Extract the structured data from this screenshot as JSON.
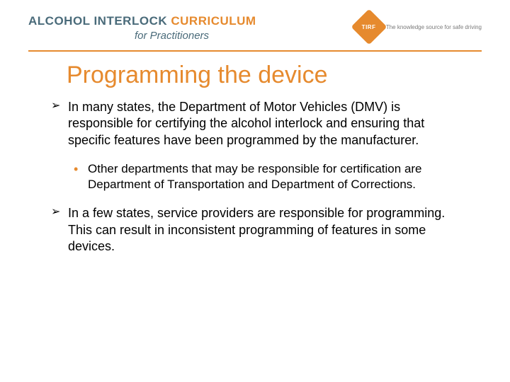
{
  "header": {
    "brand_part1": "ALCOHOL INTERLOCK ",
    "brand_part2": "CURRICULUM",
    "brand_subtitle": "for Practitioners",
    "logo_text": "TIRF",
    "tagline": "The knowledge source for safe driving"
  },
  "colors": {
    "accent": "#e68a2e",
    "brand_text": "#4a6b7a",
    "body_text": "#000000",
    "background": "#ffffff"
  },
  "slide": {
    "title": "Programming the device",
    "bullets": [
      {
        "level": 1,
        "text": "In many states, the Department of Motor Vehicles (DMV) is responsible for certifying the alcohol interlock and ensuring that specific features have been programmed by the manufacturer."
      },
      {
        "level": 2,
        "text": "Other departments that may be responsible for certification are Department of Transportation and Department of Corrections."
      },
      {
        "level": 1,
        "text": "In a few states, service providers are responsible for programming. This can result in inconsistent programming of features in some devices."
      }
    ]
  },
  "typography": {
    "title_fontsize": 34,
    "bullet_l1_fontsize": 18,
    "bullet_l2_fontsize": 17,
    "brand_fontsize": 17
  }
}
